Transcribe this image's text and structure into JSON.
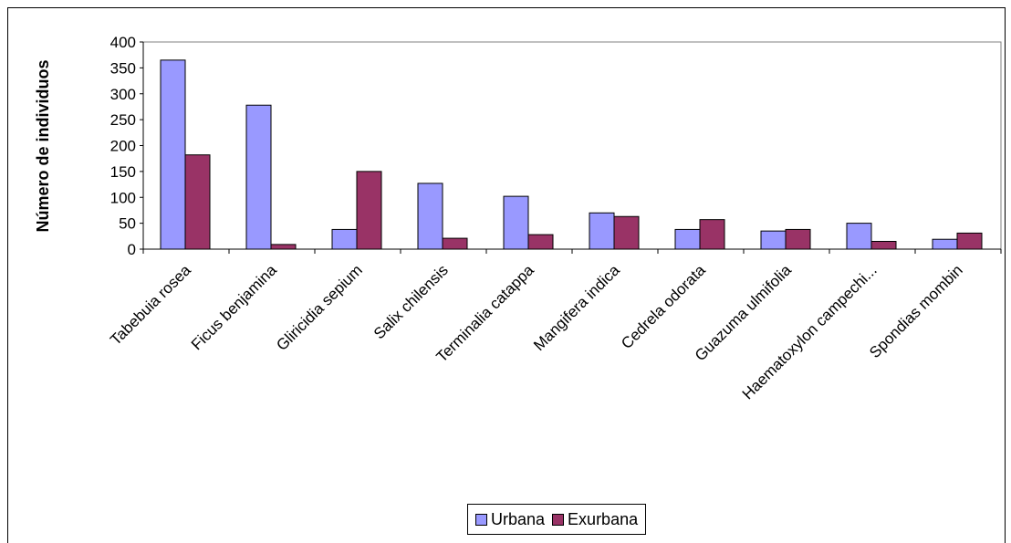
{
  "chart_data": {
    "type": "bar",
    "categories": [
      "Tabebuia rosea",
      "Ficus benjamina",
      "Gliricidia sepium",
      "Salix chilensis",
      "Terminalia catappa",
      "Mangifera indica",
      "Cedrela odorata",
      "Guazuma ulmifolia",
      "Haematoxylon campechi...",
      "Spondias mombin"
    ],
    "series": [
      {
        "name": "Urbana",
        "color": "#9999ff",
        "values": [
          365,
          278,
          38,
          127,
          102,
          70,
          38,
          35,
          50,
          19
        ]
      },
      {
        "name": "Exurbana",
        "color": "#993366",
        "values": [
          182,
          9,
          150,
          21,
          28,
          63,
          57,
          38,
          15,
          31
        ]
      }
    ],
    "title": "",
    "xlabel": "",
    "ylabel": "Número de individuos",
    "ylim": [
      0,
      400
    ],
    "yticks": [
      0,
      50,
      100,
      150,
      200,
      250,
      300,
      350,
      400
    ],
    "grid": false,
    "legend_position": "bottom"
  }
}
